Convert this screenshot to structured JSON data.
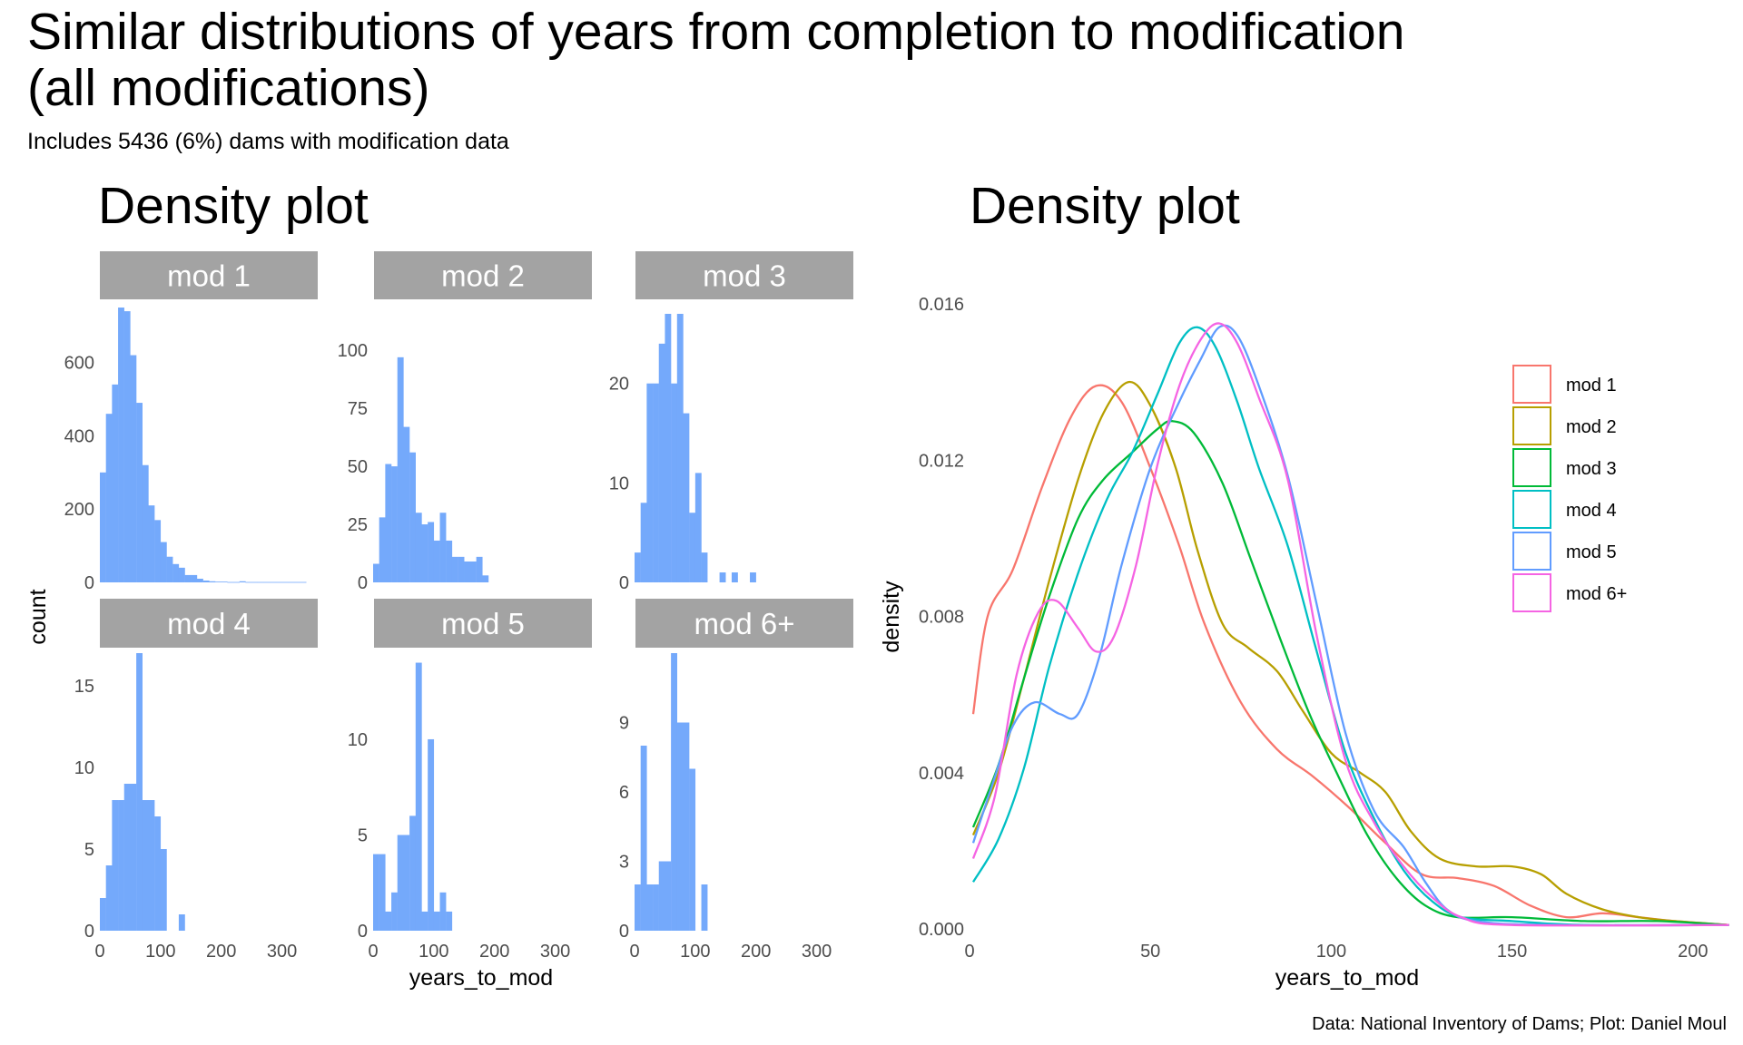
{
  "figure": {
    "title": "Similar distributions of years from completion to modification\n(all modifications)",
    "subtitle": "Includes 5436 (6%) dams with modification data",
    "caption": "Data: National Inventory of Dams; Plot: Daniel Moul"
  },
  "colors": {
    "bar": "#74A9FB",
    "strip": "#A3A3A3",
    "mod 1": "#F8766D",
    "mod 2": "#B79F00",
    "mod 3": "#00BA38",
    "mod 4": "#00BFC4",
    "mod 5": "#619CFF",
    "mod 6+": "#F564E3"
  },
  "chart_data": [
    {
      "type": "bar",
      "subtype": "faceted-histogram",
      "title": "Density plot",
      "xlabel": "years_to_mod",
      "ylabel": "count",
      "bin_width": 10,
      "xlim": [
        0,
        350
      ],
      "x_ticks": [
        0,
        100,
        200,
        300
      ],
      "facets": [
        {
          "label": "mod 1",
          "ymax": 760,
          "y_ticks": [
            0,
            200,
            400,
            600
          ],
          "bins": [
            [
              0,
              300
            ],
            [
              10,
              460
            ],
            [
              20,
              540
            ],
            [
              30,
              750
            ],
            [
              40,
              740
            ],
            [
              50,
              620
            ],
            [
              60,
              490
            ],
            [
              70,
              320
            ],
            [
              80,
              210
            ],
            [
              90,
              170
            ],
            [
              100,
              110
            ],
            [
              110,
              70
            ],
            [
              120,
              50
            ],
            [
              130,
              40
            ],
            [
              140,
              20
            ],
            [
              150,
              20
            ],
            [
              160,
              10
            ],
            [
              170,
              5
            ],
            [
              180,
              3
            ],
            [
              190,
              2
            ],
            [
              200,
              2
            ],
            [
              210,
              1
            ],
            [
              220,
              1
            ],
            [
              230,
              3
            ],
            [
              240,
              1
            ],
            [
              250,
              1
            ],
            [
              260,
              1
            ],
            [
              270,
              1
            ],
            [
              280,
              1
            ],
            [
              290,
              1
            ],
            [
              300,
              1
            ],
            [
              310,
              1
            ],
            [
              320,
              1
            ],
            [
              330,
              1
            ]
          ]
        },
        {
          "label": "mod 2",
          "ymax": 120,
          "y_ticks": [
            0,
            25,
            50,
            75,
            100
          ],
          "bins": [
            [
              0,
              8
            ],
            [
              10,
              28
            ],
            [
              20,
              51
            ],
            [
              30,
              50
            ],
            [
              40,
              97
            ],
            [
              50,
              67
            ],
            [
              60,
              56
            ],
            [
              70,
              30
            ],
            [
              80,
              25
            ],
            [
              90,
              26
            ],
            [
              100,
              18
            ],
            [
              110,
              30
            ],
            [
              120,
              18
            ],
            [
              130,
              11
            ],
            [
              140,
              11
            ],
            [
              150,
              9
            ],
            [
              160,
              9
            ],
            [
              170,
              11
            ],
            [
              180,
              3
            ]
          ]
        },
        {
          "label": "mod 3",
          "ymax": 28,
          "y_ticks": [
            0,
            10,
            20
          ],
          "bins": [
            [
              0,
              3
            ],
            [
              10,
              8
            ],
            [
              20,
              20
            ],
            [
              30,
              20
            ],
            [
              40,
              24
            ],
            [
              50,
              27
            ],
            [
              60,
              20
            ],
            [
              70,
              27
            ],
            [
              80,
              17
            ],
            [
              90,
              7
            ],
            [
              100,
              11
            ],
            [
              110,
              3
            ],
            [
              140,
              1
            ],
            [
              160,
              1
            ],
            [
              190,
              1
            ]
          ]
        },
        {
          "label": "mod 4",
          "ymax": 17,
          "y_ticks": [
            0,
            5,
            10,
            15
          ],
          "bins": [
            [
              0,
              2
            ],
            [
              10,
              4
            ],
            [
              20,
              8
            ],
            [
              30,
              8
            ],
            [
              40,
              9
            ],
            [
              50,
              9
            ],
            [
              60,
              17
            ],
            [
              70,
              8
            ],
            [
              80,
              8
            ],
            [
              90,
              7
            ],
            [
              100,
              5
            ],
            [
              130,
              1
            ]
          ]
        },
        {
          "label": "mod 5",
          "ymax": 14.5,
          "y_ticks": [
            0,
            5,
            10
          ],
          "bins": [
            [
              0,
              4
            ],
            [
              10,
              4
            ],
            [
              20,
              1
            ],
            [
              30,
              2
            ],
            [
              40,
              5
            ],
            [
              50,
              5
            ],
            [
              60,
              6
            ],
            [
              70,
              14
            ],
            [
              80,
              1
            ],
            [
              90,
              10
            ],
            [
              100,
              1
            ],
            [
              110,
              2
            ],
            [
              120,
              1
            ]
          ]
        },
        {
          "label": "mod 6+",
          "ymax": 12,
          "y_ticks": [
            0,
            3,
            6,
            9
          ],
          "bins": [
            [
              0,
              2
            ],
            [
              10,
              8
            ],
            [
              20,
              2
            ],
            [
              30,
              2
            ],
            [
              40,
              3
            ],
            [
              50,
              3
            ],
            [
              60,
              12
            ],
            [
              70,
              9
            ],
            [
              80,
              9
            ],
            [
              90,
              7
            ],
            [
              110,
              2
            ]
          ]
        }
      ]
    },
    {
      "type": "line",
      "subtype": "density",
      "title": "Density plot",
      "xlabel": "years_to_mod",
      "ylabel": "density",
      "xlim": [
        0,
        210
      ],
      "ylim": [
        0,
        0.0165
      ],
      "x_ticks": [
        0,
        50,
        100,
        150,
        200
      ],
      "y_ticks": [
        "0.000",
        "0.004",
        "0.008",
        "0.012",
        "0.016"
      ],
      "legend_position": "right",
      "series": [
        {
          "name": "mod 1",
          "points": [
            [
              1,
              0.0055
            ],
            [
              5,
              0.008
            ],
            [
              12,
              0.0092
            ],
            [
              20,
              0.0113
            ],
            [
              28,
              0.0131
            ],
            [
              35,
              0.0139
            ],
            [
              42,
              0.0135
            ],
            [
              50,
              0.0118
            ],
            [
              58,
              0.0098
            ],
            [
              65,
              0.0078
            ],
            [
              75,
              0.0058
            ],
            [
              85,
              0.0046
            ],
            [
              95,
              0.0039
            ],
            [
              105,
              0.0031
            ],
            [
              115,
              0.0022
            ],
            [
              125,
              0.0014
            ],
            [
              135,
              0.0013
            ],
            [
              145,
              0.0011
            ],
            [
              155,
              0.0006
            ],
            [
              165,
              0.0003
            ],
            [
              175,
              0.0004
            ],
            [
              185,
              0.0003
            ],
            [
              195,
              0.0002
            ],
            [
              210,
              0.0001
            ]
          ]
        },
        {
          "name": "mod 2",
          "points": [
            [
              1,
              0.0024
            ],
            [
              8,
              0.004
            ],
            [
              15,
              0.0064
            ],
            [
              22,
              0.0089
            ],
            [
              30,
              0.0115
            ],
            [
              37,
              0.0132
            ],
            [
              44,
              0.014
            ],
            [
              50,
              0.0134
            ],
            [
              57,
              0.0118
            ],
            [
              63,
              0.0097
            ],
            [
              70,
              0.0078
            ],
            [
              77,
              0.0072
            ],
            [
              85,
              0.0066
            ],
            [
              92,
              0.0056
            ],
            [
              100,
              0.0045
            ],
            [
              108,
              0.004
            ],
            [
              115,
              0.0035
            ],
            [
              122,
              0.0025
            ],
            [
              130,
              0.0018
            ],
            [
              140,
              0.0016
            ],
            [
              150,
              0.0016
            ],
            [
              158,
              0.0014
            ],
            [
              165,
              0.0009
            ],
            [
              175,
              0.0005
            ],
            [
              185,
              0.0003
            ],
            [
              195,
              0.0002
            ],
            [
              210,
              0.0001
            ]
          ]
        },
        {
          "name": "mod 3",
          "points": [
            [
              1,
              0.0026
            ],
            [
              8,
              0.0042
            ],
            [
              15,
              0.0064
            ],
            [
              22,
              0.0085
            ],
            [
              30,
              0.0105
            ],
            [
              37,
              0.0115
            ],
            [
              45,
              0.0122
            ],
            [
              52,
              0.0128
            ],
            [
              56,
              0.013
            ],
            [
              62,
              0.0127
            ],
            [
              70,
              0.0114
            ],
            [
              78,
              0.0094
            ],
            [
              86,
              0.0074
            ],
            [
              94,
              0.0055
            ],
            [
              102,
              0.0039
            ],
            [
              110,
              0.0024
            ],
            [
              118,
              0.0013
            ],
            [
              126,
              0.0006
            ],
            [
              135,
              0.0003
            ],
            [
              150,
              0.0003
            ],
            [
              170,
              0.0002
            ],
            [
              190,
              0.0002
            ],
            [
              210,
              0.0001
            ]
          ]
        },
        {
          "name": "mod 4",
          "points": [
            [
              1,
              0.0012
            ],
            [
              8,
              0.0023
            ],
            [
              15,
              0.0041
            ],
            [
              22,
              0.0067
            ],
            [
              30,
              0.0091
            ],
            [
              38,
              0.011
            ],
            [
              45,
              0.0122
            ],
            [
              52,
              0.0137
            ],
            [
              58,
              0.015
            ],
            [
              63,
              0.0154
            ],
            [
              68,
              0.0149
            ],
            [
              74,
              0.0135
            ],
            [
              80,
              0.0118
            ],
            [
              88,
              0.0098
            ],
            [
              96,
              0.0071
            ],
            [
              104,
              0.0045
            ],
            [
              112,
              0.0028
            ],
            [
              120,
              0.0015
            ],
            [
              128,
              0.0007
            ],
            [
              136,
              0.0003
            ],
            [
              150,
              0.0002
            ],
            [
              170,
              0.0001
            ],
            [
              210,
              0.0001
            ]
          ]
        },
        {
          "name": "mod 5",
          "points": [
            [
              1,
              0.0022
            ],
            [
              6,
              0.0036
            ],
            [
              12,
              0.0052
            ],
            [
              18,
              0.0058
            ],
            [
              25,
              0.0055
            ],
            [
              30,
              0.0055
            ],
            [
              36,
              0.007
            ],
            [
              42,
              0.0093
            ],
            [
              50,
              0.0118
            ],
            [
              58,
              0.0135
            ],
            [
              64,
              0.0146
            ],
            [
              69,
              0.0154
            ],
            [
              74,
              0.0152
            ],
            [
              80,
              0.0139
            ],
            [
              88,
              0.0116
            ],
            [
              96,
              0.0083
            ],
            [
              104,
              0.005
            ],
            [
              112,
              0.003
            ],
            [
              120,
              0.0021
            ],
            [
              126,
              0.0012
            ],
            [
              132,
              0.0005
            ],
            [
              140,
              0.0002
            ],
            [
              160,
              0.0001
            ],
            [
              210,
              0.0001
            ]
          ]
        },
        {
          "name": "mod 6+",
          "points": [
            [
              1,
              0.0018
            ],
            [
              7,
              0.0034
            ],
            [
              13,
              0.0065
            ],
            [
              19,
              0.0081
            ],
            [
              24,
              0.0084
            ],
            [
              30,
              0.0077
            ],
            [
              35,
              0.0071
            ],
            [
              40,
              0.0075
            ],
            [
              46,
              0.0093
            ],
            [
              52,
              0.0119
            ],
            [
              58,
              0.0139
            ],
            [
              64,
              0.0151
            ],
            [
              69,
              0.0155
            ],
            [
              74,
              0.015
            ],
            [
              80,
              0.0136
            ],
            [
              88,
              0.0115
            ],
            [
              96,
              0.0075
            ],
            [
              104,
              0.0043
            ],
            [
              112,
              0.0027
            ],
            [
              120,
              0.0016
            ],
            [
              128,
              0.0008
            ],
            [
              136,
              0.0003
            ],
            [
              150,
              0.0001
            ],
            [
              210,
              0.0001
            ]
          ]
        }
      ]
    }
  ]
}
